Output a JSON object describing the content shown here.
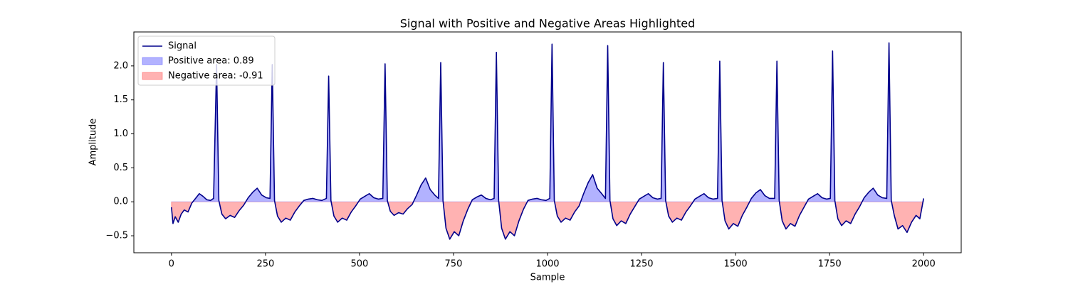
{
  "chart_data": {
    "type": "line",
    "title": "Signal with Positive and Negative Areas Highlighted",
    "xlabel": "Sample",
    "ylabel": "Amplitude",
    "xlim": [
      -100,
      2100
    ],
    "ylim": [
      -0.75,
      2.5
    ],
    "xticks": [
      0,
      250,
      500,
      750,
      1000,
      1250,
      1500,
      1750,
      2000
    ],
    "yticks": [
      {
        "value": -0.5,
        "label": "−0.5"
      },
      {
        "value": 0,
        "label": "0.0"
      },
      {
        "value": 0.5,
        "label": "0.5"
      },
      {
        "value": 1,
        "label": "1.0"
      },
      {
        "value": 1.5,
        "label": "1.5"
      },
      {
        "value": 2,
        "label": "2.0"
      }
    ],
    "grid": false,
    "legend": "upper left",
    "x": [
      0,
      4,
      10,
      18,
      26,
      34,
      44,
      54,
      64,
      74,
      84,
      94,
      104,
      112,
      120,
      126,
      134,
      144,
      156,
      168,
      180,
      192,
      204,
      216,
      228,
      240,
      252,
      262,
      268,
      274,
      282,
      292,
      304,
      316,
      328,
      340,
      352,
      364,
      376,
      388,
      400,
      412,
      418,
      424,
      432,
      442,
      454,
      466,
      478,
      490,
      502,
      514,
      526,
      538,
      550,
      562,
      568,
      574,
      582,
      592,
      604,
      616,
      628,
      640,
      652,
      664,
      676,
      688,
      700,
      710,
      716,
      722,
      730,
      740,
      752,
      764,
      776,
      788,
      800,
      812,
      824,
      836,
      848,
      858,
      864,
      870,
      878,
      888,
      900,
      912,
      924,
      936,
      948,
      960,
      972,
      984,
      996,
      1006,
      1012,
      1018,
      1026,
      1036,
      1048,
      1060,
      1072,
      1084,
      1096,
      1108,
      1120,
      1132,
      1144,
      1154,
      1160,
      1166,
      1174,
      1184,
      1196,
      1208,
      1220,
      1232,
      1244,
      1256,
      1268,
      1280,
      1292,
      1302,
      1308,
      1314,
      1322,
      1332,
      1344,
      1356,
      1368,
      1380,
      1392,
      1404,
      1416,
      1428,
      1440,
      1452,
      1458,
      1464,
      1472,
      1482,
      1494,
      1506,
      1518,
      1530,
      1542,
      1554,
      1566,
      1578,
      1590,
      1604,
      1610,
      1616,
      1624,
      1634,
      1646,
      1658,
      1670,
      1682,
      1694,
      1706,
      1718,
      1730,
      1742,
      1752,
      1758,
      1764,
      1772,
      1782,
      1794,
      1806,
      1818,
      1830,
      1842,
      1854,
      1866,
      1878,
      1890,
      1902,
      1908,
      1914,
      1922,
      1932,
      1944,
      1956,
      1968,
      1980,
      1990,
      2000
    ],
    "series": [
      {
        "name": "Signal",
        "color": "#00008b",
        "values": [
          -0.08,
          -0.32,
          -0.22,
          -0.3,
          -0.18,
          -0.12,
          -0.15,
          -0.02,
          0.05,
          0.12,
          0.08,
          0.03,
          0.02,
          0.05,
          2.02,
          0.02,
          -0.18,
          -0.25,
          -0.2,
          -0.23,
          -0.13,
          -0.05,
          0.06,
          0.14,
          0.2,
          0.1,
          0.06,
          0.05,
          2.02,
          0.02,
          -0.21,
          -0.3,
          -0.24,
          -0.27,
          -0.15,
          -0.06,
          0.02,
          0.04,
          0.05,
          0.03,
          0.02,
          0.05,
          1.85,
          0.02,
          -0.21,
          -0.3,
          -0.24,
          -0.27,
          -0.15,
          -0.06,
          0.04,
          0.08,
          0.12,
          0.06,
          0.04,
          0.05,
          2.03,
          0.02,
          -0.14,
          -0.2,
          -0.16,
          -0.18,
          -0.1,
          -0.04,
          0.1,
          0.25,
          0.35,
          0.18,
          0.1,
          0.05,
          2.05,
          0.02,
          -0.39,
          -0.55,
          -0.44,
          -0.5,
          -0.28,
          -0.11,
          0.03,
          0.07,
          0.1,
          0.05,
          0.03,
          0.05,
          2.2,
          0.02,
          -0.39,
          -0.55,
          -0.44,
          -0.5,
          -0.28,
          -0.11,
          0.02,
          0.04,
          0.05,
          0.03,
          0.02,
          0.05,
          2.32,
          0.02,
          -0.21,
          -0.3,
          -0.24,
          -0.27,
          -0.15,
          -0.06,
          0.12,
          0.28,
          0.4,
          0.2,
          0.12,
          0.05,
          2.3,
          0.02,
          -0.25,
          -0.35,
          -0.28,
          -0.32,
          -0.18,
          -0.07,
          0.04,
          0.08,
          0.12,
          0.06,
          0.04,
          0.05,
          2.05,
          0.02,
          -0.21,
          -0.3,
          -0.24,
          -0.27,
          -0.15,
          -0.06,
          0.04,
          0.08,
          0.12,
          0.06,
          0.04,
          0.05,
          2.07,
          0.02,
          -0.28,
          -0.4,
          -0.32,
          -0.36,
          -0.2,
          -0.08,
          0.05,
          0.13,
          0.18,
          0.09,
          0.05,
          0.05,
          2.07,
          0.02,
          -0.28,
          -0.4,
          -0.32,
          -0.36,
          -0.2,
          -0.08,
          0.04,
          0.08,
          0.12,
          0.06,
          0.04,
          0.05,
          2.22,
          0.02,
          -0.25,
          -0.35,
          -0.28,
          -0.32,
          -0.18,
          -0.07,
          0.06,
          0.14,
          0.2,
          0.1,
          0.06,
          0.05,
          2.34,
          0.02,
          -0.2,
          -0.4,
          -0.35,
          -0.45,
          -0.3,
          -0.2,
          -0.25,
          0.05
        ]
      }
    ],
    "fills": [
      {
        "name": "Positive area: 0.89",
        "color": "#0000ff"
      },
      {
        "name": "Negative area: -0.91",
        "color": "#ff0000"
      }
    ]
  }
}
